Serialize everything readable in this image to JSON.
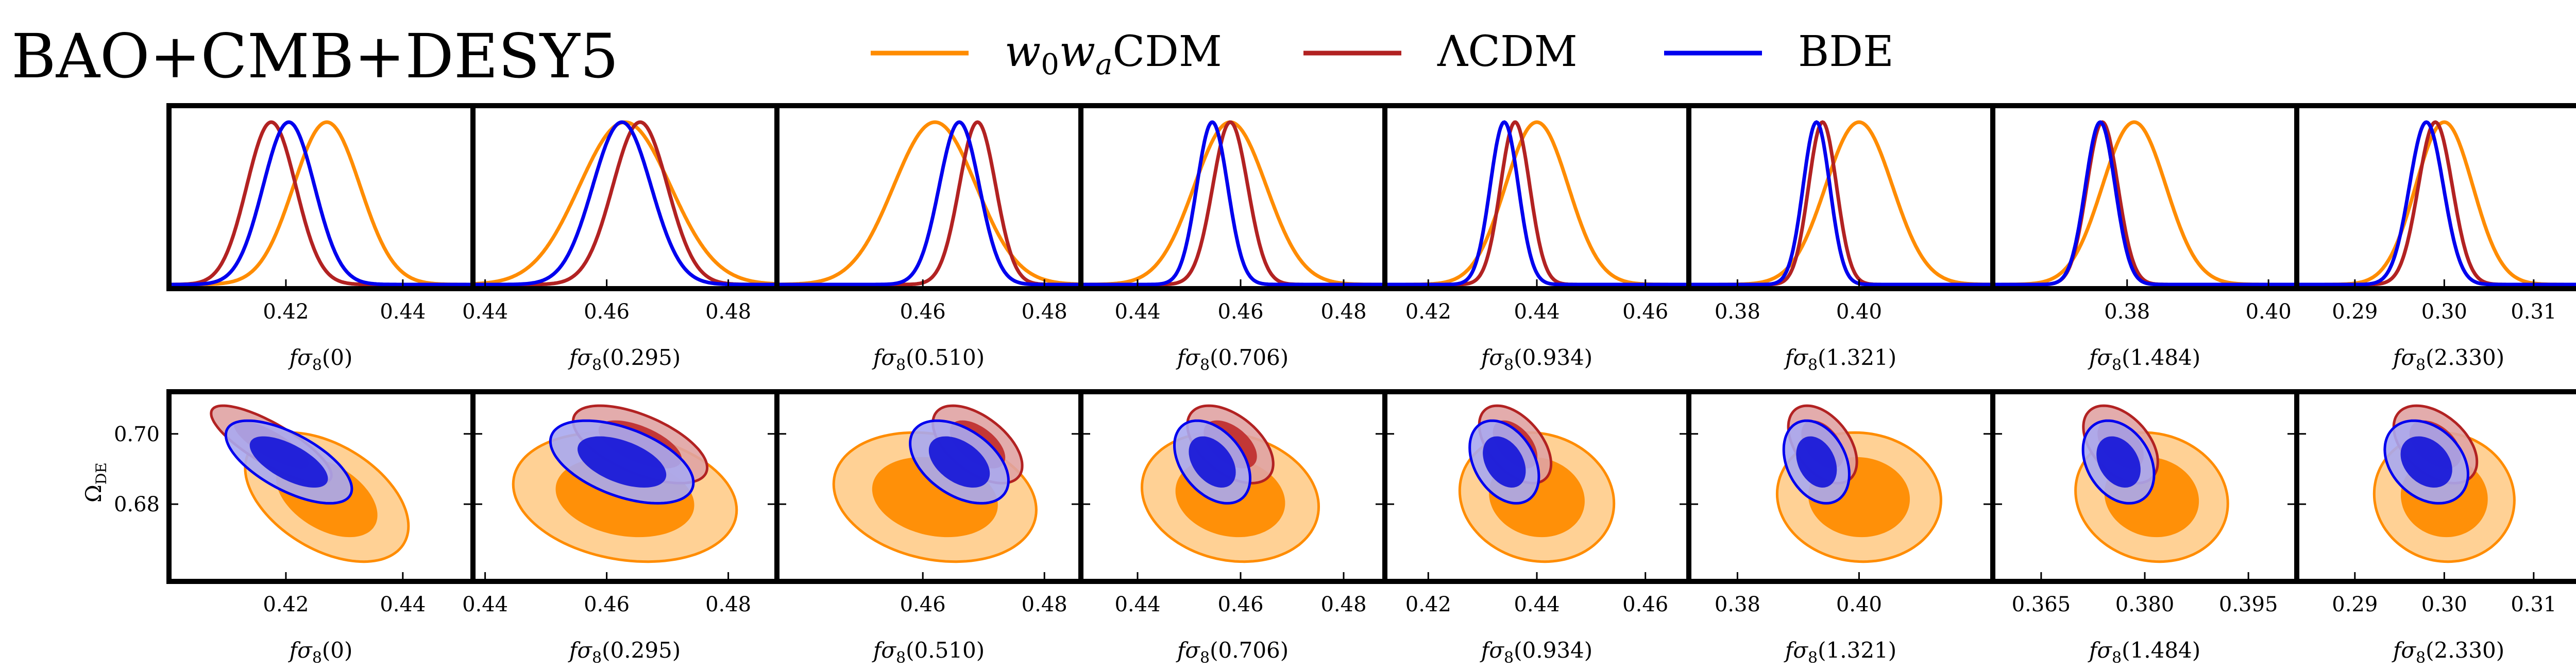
{
  "figure": {
    "title": "BAO+CMB+DESY5",
    "legend": [
      {
        "label_main": "w",
        "label_sub0": "0",
        "label_mid": "w",
        "label_sub1": "a",
        "label_tail": "CDM",
        "color": "#ff8c00"
      },
      {
        "label_main": "ΛCDM",
        "color": "#b22222"
      },
      {
        "label_main": "BDE",
        "color": "#0000ee"
      }
    ]
  },
  "chart_data": [
    {
      "type": "line",
      "name": "1D marginal posteriors of fσ8(z)",
      "xlabels": [
        "fσ8(0)",
        "fσ8(0.295)",
        "fσ8(0.510)",
        "fσ8(0.706)",
        "fσ8(0.934)",
        "fσ8(1.321)",
        "fσ8(1.484)",
        "fσ8(2.330)"
      ],
      "xlim": [
        [
          0.4,
          0.452
        ],
        [
          0.438,
          0.488
        ],
        [
          0.436,
          0.486
        ],
        [
          0.429,
          0.488
        ],
        [
          0.412,
          0.468
        ],
        [
          0.372,
          0.422
        ],
        [
          0.361,
          0.404
        ],
        [
          0.2835,
          0.3175
        ]
      ],
      "xticks": [
        [
          0.42,
          0.44
        ],
        [
          0.44,
          0.46,
          0.48
        ],
        [
          0.46,
          0.48
        ],
        [
          0.44,
          0.46,
          0.48
        ],
        [
          0.42,
          0.44,
          0.46
        ],
        [
          0.38,
          0.4
        ],
        [
          0.38,
          0.4
        ],
        [
          0.29,
          0.3,
          0.31
        ]
      ],
      "xticklabels": [
        [
          "0.42",
          "0.44"
        ],
        [
          "0.44",
          "0.46",
          "0.48"
        ],
        [
          "0.46",
          "0.48"
        ],
        [
          "0.44",
          "0.46",
          "0.48"
        ],
        [
          "0.42",
          "0.44",
          "0.46"
        ],
        [
          "0.38",
          "0.40"
        ],
        [
          "0.38",
          "0.40"
        ],
        [
          "0.29",
          "0.30",
          "0.31"
        ]
      ],
      "series": [
        {
          "name": "w0waCDM",
          "color": "#ff8c00",
          "mean": [
            0.427,
            0.463,
            0.462,
            0.458,
            0.44,
            0.4,
            0.381,
            0.3
          ],
          "sigma": [
            0.0057,
            0.0075,
            0.0068,
            0.007,
            0.0058,
            0.0055,
            0.0045,
            0.0032
          ]
        },
        {
          "name": "ΛCDM",
          "color": "#b22222",
          "mean": [
            0.4175,
            0.4655,
            0.469,
            0.458,
            0.436,
            0.394,
            0.3765,
            0.299
          ],
          "sigma": [
            0.0042,
            0.0045,
            0.003,
            0.0034,
            0.0027,
            0.0023,
            0.0022,
            0.0019
          ]
        },
        {
          "name": "BDE",
          "color": "#0000ee",
          "mean": [
            0.4205,
            0.4625,
            0.466,
            0.4545,
            0.434,
            0.393,
            0.3762,
            0.298
          ],
          "sigma": [
            0.0044,
            0.0048,
            0.0033,
            0.003,
            0.0026,
            0.0022,
            0.0021,
            0.0019
          ]
        }
      ]
    },
    {
      "type": "scatter",
      "name": "2D posteriors Ω_DE vs fσ8(z) (68% and 95% contours)",
      "xlabels": [
        "fσ8(0)",
        "fσ8(0.295)",
        "fσ8(0.510)",
        "fσ8(0.706)",
        "fσ8(0.934)",
        "fσ8(1.321)",
        "fσ8(1.484)",
        "fσ8(2.330)"
      ],
      "ylabel": "Ω_DE",
      "ylim": [
        0.658,
        0.712
      ],
      "yticks": [
        0.68,
        0.7
      ],
      "yticklabels": [
        "0.68",
        "0.70"
      ],
      "xlim": [
        [
          0.4,
          0.452
        ],
        [
          0.438,
          0.488
        ],
        [
          0.436,
          0.486
        ],
        [
          0.429,
          0.488
        ],
        [
          0.412,
          0.468
        ],
        [
          0.372,
          0.422
        ],
        [
          0.358,
          0.402
        ],
        [
          0.2835,
          0.3175
        ]
      ],
      "xticks": [
        [
          0.42,
          0.44
        ],
        [
          0.44,
          0.46,
          0.48
        ],
        [
          0.46,
          0.48
        ],
        [
          0.44,
          0.46,
          0.48
        ],
        [
          0.42,
          0.44,
          0.46
        ],
        [
          0.38,
          0.4
        ],
        [
          0.365,
          0.38,
          0.395
        ],
        [
          0.29,
          0.3,
          0.31
        ]
      ],
      "xticklabels": [
        [
          "0.42",
          "0.44"
        ],
        [
          "0.44",
          "0.46",
          "0.48"
        ],
        [
          "0.46",
          "0.48"
        ],
        [
          "0.44",
          "0.46",
          "0.48"
        ],
        [
          "0.42",
          "0.44",
          "0.46"
        ],
        [
          "0.38",
          "0.40"
        ],
        [
          "0.365",
          "0.380",
          "0.395"
        ],
        [
          "0.29",
          "0.30",
          "0.31"
        ]
      ],
      "series": [
        {
          "name": "w0waCDM",
          "color": "#ff8c00",
          "center_x": [
            0.427,
            0.463,
            0.462,
            0.458,
            0.44,
            0.4,
            0.381,
            0.3
          ],
          "center_y": 0.682,
          "sigma_x": [
            0.0057,
            0.0075,
            0.0068,
            0.007,
            0.0058,
            0.0055,
            0.0045,
            0.0032
          ],
          "sigma_y": 0.0075,
          "corr": [
            -0.45,
            -0.2,
            -0.2,
            -0.15,
            -0.1,
            -0.05,
            -0.1,
            -0.05
          ]
        },
        {
          "name": "ΛCDM",
          "color": "#b22222",
          "center_x": [
            0.4175,
            0.4655,
            0.469,
            0.458,
            0.436,
            0.394,
            0.3765,
            0.299
          ],
          "center_y": 0.697,
          "sigma_x": [
            0.0042,
            0.0045,
            0.003,
            0.0034,
            0.0027,
            0.0023,
            0.0022,
            0.0019
          ],
          "sigma_y": 0.0045,
          "corr": [
            -0.8,
            -0.6,
            -0.55,
            -0.5,
            -0.5,
            -0.45,
            -0.45,
            -0.45
          ]
        },
        {
          "name": "BDE",
          "color": "#0000ee",
          "center_x": [
            0.4205,
            0.4625,
            0.466,
            0.4545,
            0.434,
            0.393,
            0.3762,
            0.298
          ],
          "center_y": 0.692,
          "sigma_x": [
            0.0044,
            0.0048,
            0.0033,
            0.003,
            0.0026,
            0.0022,
            0.0021,
            0.0019
          ],
          "sigma_y": 0.0048,
          "corr": [
            -0.65,
            -0.5,
            -0.45,
            -0.4,
            -0.35,
            -0.3,
            -0.3,
            -0.3
          ]
        }
      ]
    }
  ]
}
